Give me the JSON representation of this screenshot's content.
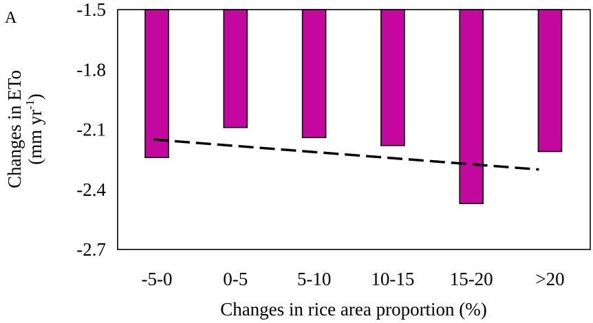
{
  "chart_data": {
    "type": "bar",
    "panel_label": "A",
    "categories": [
      "-5-0",
      "0-5",
      "5-10",
      "10-15",
      "15-20",
      ">20"
    ],
    "values": [
      -2.24,
      -2.09,
      -2.14,
      -2.18,
      -2.47,
      -2.21
    ],
    "trendline": {
      "style": "dashed",
      "x_start": "-5-0",
      "x_end": ">20",
      "y_start": -2.15,
      "y_end": -2.3
    },
    "xlabel": "Changes in rice area proportion (%)",
    "ylabel_line1": "Changes in ETo",
    "ylabel_line2_base": "(mm yr",
    "ylabel_line2_sup": "-1",
    "ylabel_line2_end": ")",
    "ylim": [
      -2.7,
      -1.5
    ],
    "yticks": [
      -1.5,
      -1.8,
      -2.1,
      -2.4,
      -2.7
    ],
    "ytick_labels": [
      "-1.5",
      "-1.8",
      "-2.1",
      "-2.4",
      "-2.7"
    ],
    "bar_color": "#c3079f",
    "grid": false
  }
}
